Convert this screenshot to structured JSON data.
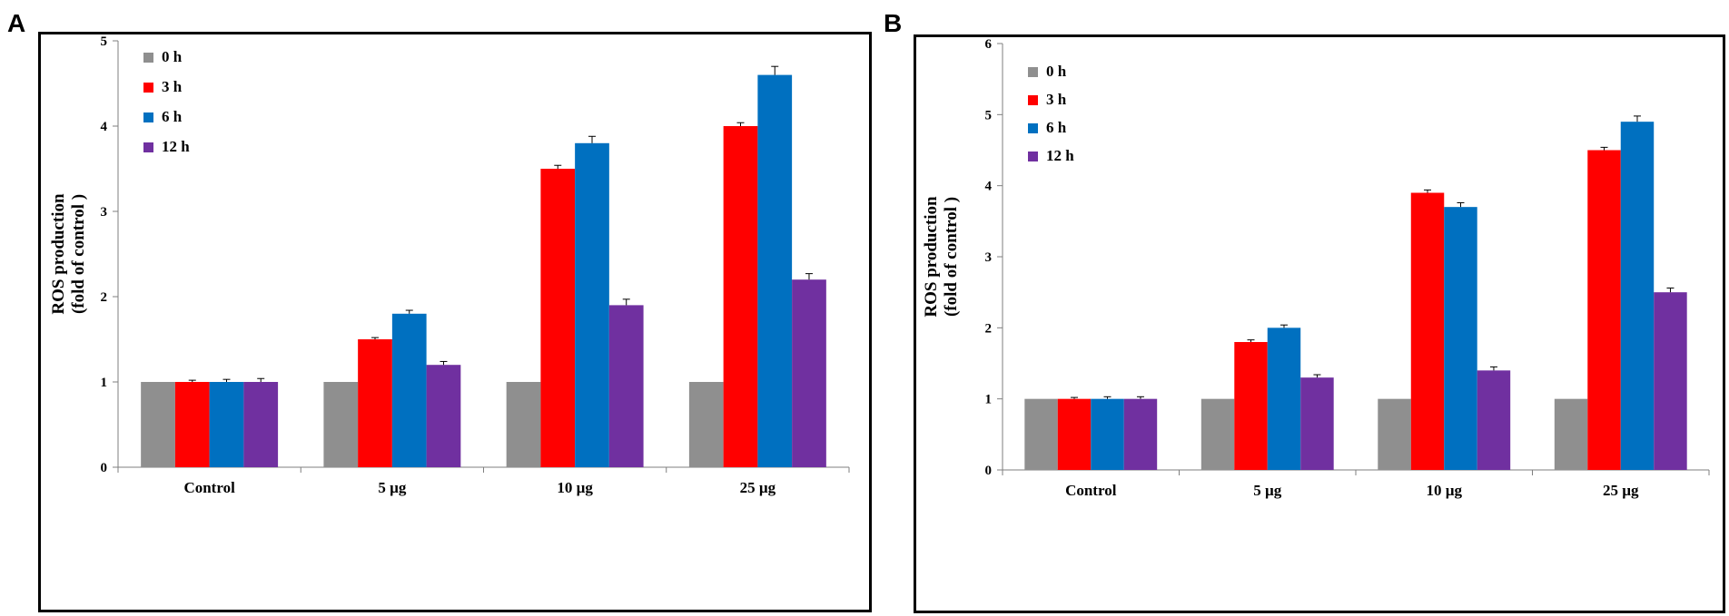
{
  "panels": [
    {
      "letter": "A",
      "chart_data": {
        "type": "bar",
        "title": "",
        "xlabel": "",
        "ylabel_line1": "ROS production",
        "ylabel_line2": "(fold of control )",
        "ylim": [
          0,
          5
        ],
        "yticks": [
          0,
          1,
          2,
          3,
          4,
          5
        ],
        "categories": [
          "Control",
          "5 µg",
          "10 µg",
          "25 µg"
        ],
        "series": [
          {
            "name": "0 h",
            "color": "#8f8f8f",
            "values": [
              1.0,
              1.0,
              1.0,
              1.0
            ],
            "errors": [
              0.0,
              0.0,
              0.0,
              0.0
            ]
          },
          {
            "name": "3 h",
            "color": "#ff0000",
            "values": [
              1.0,
              1.5,
              3.5,
              4.0
            ],
            "errors": [
              0.02,
              0.02,
              0.04,
              0.04
            ]
          },
          {
            "name": "6 h",
            "color": "#0070c0",
            "values": [
              1.0,
              1.8,
              3.8,
              4.6
            ],
            "errors": [
              0.03,
              0.04,
              0.08,
              0.1
            ]
          },
          {
            "name": "12 h",
            "color": "#7030a0",
            "values": [
              1.0,
              1.2,
              1.9,
              2.2
            ],
            "errors": [
              0.04,
              0.04,
              0.07,
              0.07
            ]
          }
        ],
        "legend_position": "top-left"
      }
    },
    {
      "letter": "B",
      "chart_data": {
        "type": "bar",
        "title": "",
        "xlabel": "",
        "ylabel_line1": "ROS production",
        "ylabel_line2": "(fold of control )",
        "ylim": [
          0,
          6
        ],
        "yticks": [
          0,
          1,
          2,
          3,
          4,
          5,
          6
        ],
        "categories": [
          "Control",
          "5 µg",
          "10 µg",
          "25 µg"
        ],
        "series": [
          {
            "name": "0 h",
            "color": "#8f8f8f",
            "values": [
              1.0,
              1.0,
              1.0,
              1.0
            ],
            "errors": [
              0.0,
              0.0,
              0.0,
              0.0
            ]
          },
          {
            "name": "3 h",
            "color": "#ff0000",
            "values": [
              1.0,
              1.8,
              3.9,
              4.5
            ],
            "errors": [
              0.02,
              0.03,
              0.04,
              0.04
            ]
          },
          {
            "name": "6 h",
            "color": "#0070c0",
            "values": [
              1.0,
              2.0,
              3.7,
              4.9
            ],
            "errors": [
              0.03,
              0.04,
              0.06,
              0.08
            ]
          },
          {
            "name": "12 h",
            "color": "#7030a0",
            "values": [
              1.0,
              1.3,
              1.4,
              2.5
            ],
            "errors": [
              0.03,
              0.04,
              0.05,
              0.06
            ]
          }
        ],
        "legend_position": "top-left"
      }
    }
  ]
}
